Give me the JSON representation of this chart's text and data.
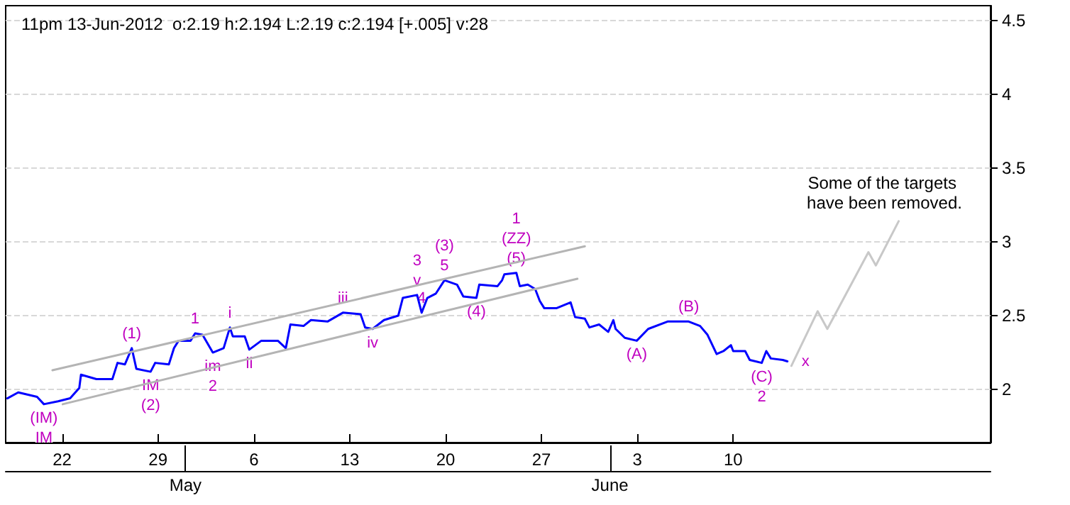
{
  "chart_data": {
    "type": "line",
    "title": "11pm 13-Jun-2012  o:2.19 h:2.194 L:2.19 c:2.194 [+.005] v:28",
    "series": [
      {
        "color": "#0000ff",
        "x": [
          "2012-04-18T00:00",
          "2012-04-18T19:00",
          "2012-04-20T04:00",
          "2012-04-20T16:00",
          "2012-04-21T17:00",
          "2012-04-22T14:00",
          "2012-04-23T06:00",
          "2012-04-23T09:00",
          "2012-04-24T12:00",
          "2012-04-25T16:00",
          "2012-04-26T01:00",
          "2012-04-26T14:00",
          "2012-04-27T02:00",
          "2012-04-27T10:00",
          "2012-04-28T11:00",
          "2012-04-28T19:00",
          "2012-04-29T19:00",
          "2012-04-30T04:00",
          "2012-04-30T12:00",
          "2012-05-01T09:00",
          "2012-05-01T17:00",
          "2012-05-02T06:00",
          "2012-05-03T00:00",
          "2012-05-03T19:00",
          "2012-05-04T06:00",
          "2012-05-04T11:00",
          "2012-05-05T08:00",
          "2012-05-05T16:00",
          "2012-05-06T13:00",
          "2012-05-07T18:00",
          "2012-05-08T08:00",
          "2012-05-08T16:00",
          "2012-05-09T15:00",
          "2012-05-10T04:00",
          "2012-05-11T09:00",
          "2012-05-12T12:00",
          "2012-05-13T19:00",
          "2012-05-14T03:00",
          "2012-05-14T16:00",
          "2012-05-15T12:00",
          "2012-05-16T13:00",
          "2012-05-16T21:00",
          "2012-05-17T22:00",
          "2012-05-18T06:00",
          "2012-05-18T16:00",
          "2012-05-19T07:00",
          "2012-05-19T22:00",
          "2012-05-20T20:00",
          "2012-05-21T07:00",
          "2012-05-22T06:00",
          "2012-05-22T11:00",
          "2012-05-23T19:00",
          "2012-05-24T03:00",
          "2012-05-24T07:00",
          "2012-05-25T04:00",
          "2012-05-25T10:00",
          "2012-05-26T00:00",
          "2012-05-26T13:00",
          "2012-05-26T21:00",
          "2012-05-27T05:00",
          "2012-05-28T02:00",
          "2012-05-29T03:00",
          "2012-05-29T11:00",
          "2012-05-30T04:00",
          "2012-05-30T12:00",
          "2012-05-31T05:00",
          "2012-05-31T21:00",
          "2012-06-01T06:00",
          "2012-06-01T10:00",
          "2012-06-02T02:00",
          "2012-06-02T23:00",
          "2012-06-03T19:00",
          "2012-06-05T05:00",
          "2012-06-06T18:00",
          "2012-06-07T14:00",
          "2012-06-08T03:00",
          "2012-06-08T19:00",
          "2012-06-09T07:00",
          "2012-06-09T20:00",
          "2012-06-10T00:00",
          "2012-06-10T21:00",
          "2012-06-11T05:00",
          "2012-06-12T02:00",
          "2012-06-12T10:00",
          "2012-06-12T18:00",
          "2012-06-13T15:00",
          "2012-06-13T23:00"
        ],
        "values": [
          1.94,
          1.98,
          1.95,
          1.9,
          1.92,
          1.94,
          2.01,
          2.1,
          2.07,
          2.07,
          2.18,
          2.17,
          2.28,
          2.14,
          2.12,
          2.18,
          2.17,
          2.28,
          2.33,
          2.33,
          2.38,
          2.37,
          2.25,
          2.28,
          2.42,
          2.36,
          2.36,
          2.27,
          2.33,
          2.33,
          2.28,
          2.44,
          2.43,
          2.47,
          2.46,
          2.52,
          2.51,
          2.42,
          2.41,
          2.47,
          2.5,
          2.62,
          2.64,
          2.52,
          2.62,
          2.65,
          2.74,
          2.71,
          2.63,
          2.62,
          2.71,
          2.7,
          2.74,
          2.78,
          2.79,
          2.7,
          2.71,
          2.68,
          2.6,
          2.55,
          2.55,
          2.59,
          2.49,
          2.48,
          2.42,
          2.44,
          2.39,
          2.47,
          2.41,
          2.35,
          2.33,
          2.41,
          2.46,
          2.46,
          2.43,
          2.37,
          2.24,
          2.26,
          2.3,
          2.26,
          2.26,
          2.2,
          2.18,
          2.26,
          2.21,
          2.2,
          2.19
        ]
      },
      {
        "color": "#b4b4b4",
        "x": [
          "2012-04-21T07:00",
          "2012-05-30T04:00"
        ],
        "values": [
          2.13,
          2.97
        ]
      },
      {
        "color": "#b4b4b4",
        "x": [
          "2012-04-22T01:00",
          "2012-05-29T15:00"
        ],
        "values": [
          1.9,
          2.75
        ]
      },
      {
        "color": "#c8c8c8",
        "x": [
          "2012-06-14T06:00",
          "2012-06-16T04:00",
          "2012-06-16T21:00",
          "2012-06-19T21:00",
          "2012-06-20T10:00",
          "2012-06-22T02:00"
        ],
        "values": [
          2.16,
          2.53,
          2.41,
          2.93,
          2.84,
          3.14
        ]
      }
    ],
    "xlim": [
      "2012-04-17T21:00",
      "2012-06-28T19:00"
    ],
    "xticks": [
      {
        "value": "2012-04-22",
        "label": "22"
      },
      {
        "value": "2012-04-29",
        "label": "29"
      },
      {
        "value": "2012-05-06",
        "label": "6"
      },
      {
        "value": "2012-05-13",
        "label": "13"
      },
      {
        "value": "2012-05-20",
        "label": "20"
      },
      {
        "value": "2012-05-27",
        "label": "27"
      },
      {
        "value": "2012-06-03",
        "label": "3"
      },
      {
        "value": "2012-06-10",
        "label": "10"
      }
    ],
    "x2lim": [
      "2012-04-17T21:00",
      "2012-06-28T19:00"
    ],
    "x2ticks": [
      {
        "value": "2012-05-01",
        "label": "May"
      },
      {
        "value": "2012-06-01",
        "label": "June"
      }
    ],
    "ylim": [
      1.64,
      4.6
    ],
    "yticks": [
      2,
      2.5,
      3,
      3.5,
      4,
      4.5
    ],
    "grid": "y",
    "marker": "none",
    "line_style": "solid",
    "annotations": [
      {
        "text": "(IM)",
        "x": "2012-04-20T16:00",
        "y": 1.9
      },
      {
        "text": "IM",
        "x": "2012-04-20T16:00",
        "y": 1.9
      },
      {
        "text": "(1)",
        "x": "2012-04-27T02:00",
        "y": 2.28
      },
      {
        "text": "IM",
        "x": "2012-04-28T11:00",
        "y": 2.12
      },
      {
        "text": "(2)",
        "x": "2012-04-28T11:00",
        "y": 2.12
      },
      {
        "text": "1",
        "x": "2012-05-01T17:00",
        "y": 2.38
      },
      {
        "text": "i",
        "x": "2012-05-04T06:00",
        "y": 2.42
      },
      {
        "text": "im",
        "x": "2012-05-03T00:00",
        "y": 2.25
      },
      {
        "text": "2",
        "x": "2012-05-03T00:00",
        "y": 2.25
      },
      {
        "text": "ii",
        "x": "2012-05-05T16:00",
        "y": 2.27
      },
      {
        "text": "iii",
        "x": "2012-05-12T12:00",
        "y": 2.52
      },
      {
        "text": "iv",
        "x": "2012-05-14T16:00",
        "y": 2.41
      },
      {
        "text": "v",
        "x": "2012-05-17T22:00",
        "y": 2.64
      },
      {
        "text": "3",
        "x": "2012-05-17T22:00",
        "y": 2.64
      },
      {
        "text": "4",
        "x": "2012-05-18T06:00",
        "y": 2.52
      },
      {
        "text": "5",
        "x": "2012-05-19T22:00",
        "y": 2.74
      },
      {
        "text": "(3)",
        "x": "2012-05-19T22:00",
        "y": 2.74
      },
      {
        "text": "(4)",
        "x": "2012-05-22T06:00",
        "y": 2.62
      },
      {
        "text": "(5)",
        "x": "2012-05-25T04:00",
        "y": 2.79
      },
      {
        "text": "(ZZ)",
        "x": "2012-05-25T04:00",
        "y": 2.79
      },
      {
        "text": "1",
        "x": "2012-05-25T04:00",
        "y": 2.79
      },
      {
        "text": "(A)",
        "x": "2012-06-02T23:00",
        "y": 2.33
      },
      {
        "text": "(B)",
        "x": "2012-06-06T18:00",
        "y": 2.46
      },
      {
        "text": "(C)",
        "x": "2012-06-12T02:00",
        "y": 2.18
      },
      {
        "text": "2",
        "x": "2012-06-12T02:00",
        "y": 2.18
      },
      {
        "text": "x",
        "x": "2012-06-13T23:00",
        "y": 2.19
      },
      "Some of the targets have been removed."
    ]
  }
}
